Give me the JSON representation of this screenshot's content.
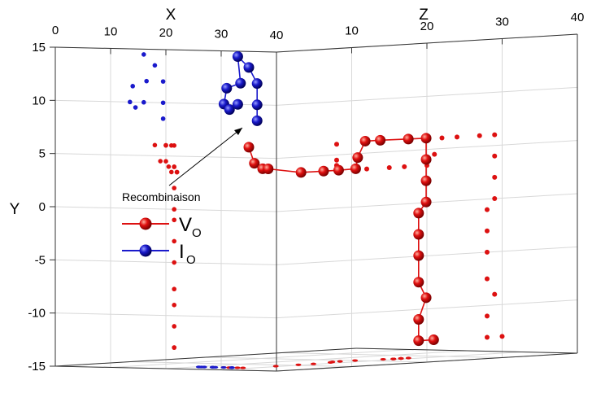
{
  "chart_data": {
    "type": "scatter",
    "projection": "3d",
    "axes": {
      "x": {
        "label": "X",
        "range": [
          0,
          40
        ],
        "ticks": [
          0,
          10,
          20,
          30,
          40
        ]
      },
      "z": {
        "label": "Z",
        "range": [
          0,
          40
        ],
        "ticks": [
          10,
          20,
          30,
          40
        ]
      },
      "y": {
        "label": "Y",
        "range": [
          -15,
          15
        ],
        "ticks": [
          15,
          10,
          5,
          0,
          -5,
          -10,
          -15
        ]
      }
    },
    "grid": true,
    "annotation": {
      "text": "Recombinaison"
    },
    "legend": {
      "placement": "middle-left",
      "entries": [
        {
          "name": "V",
          "subscript": "O",
          "color": "#dd1111"
        },
        {
          "name": "I",
          "subscript": "O",
          "color": "#1a1acc"
        }
      ]
    },
    "series": [
      {
        "name": "VO",
        "color": "#dd1111",
        "points": [
          [
            35,
            6,
            0
          ],
          [
            36,
            4.5,
            0
          ],
          [
            37.5,
            4,
            0
          ],
          [
            38.5,
            4,
            0
          ],
          [
            39,
            3.5,
            4
          ],
          [
            39,
            3.5,
            7
          ],
          [
            39,
            3.5,
            9
          ],
          [
            38,
            3.5,
            12
          ],
          [
            37,
            4.5,
            13
          ],
          [
            37,
            6,
            14
          ],
          [
            37,
            6,
            16
          ],
          [
            38,
            6,
            19
          ],
          [
            38.5,
            6,
            21
          ],
          [
            38.5,
            4,
            21
          ],
          [
            38.5,
            2,
            21
          ],
          [
            38.5,
            0,
            21
          ],
          [
            38.5,
            -1,
            20
          ],
          [
            38.5,
            -3,
            20
          ],
          [
            38.5,
            -5,
            20
          ],
          [
            38.5,
            -7.5,
            20
          ],
          [
            38.5,
            -9,
            21
          ],
          [
            38.5,
            -11,
            20
          ],
          [
            38.5,
            -13,
            20
          ],
          [
            38.5,
            -13,
            22
          ]
        ]
      },
      {
        "name": "IO",
        "color": "#1a1acc",
        "points": [
          [
            36.5,
            8.5,
            0
          ],
          [
            36.5,
            10,
            0
          ],
          [
            36.5,
            12,
            0
          ],
          [
            35,
            13.5,
            0
          ],
          [
            33,
            14.5,
            0
          ],
          [
            33.5,
            12,
            0
          ],
          [
            31,
            11.5,
            0
          ],
          [
            30.5,
            10,
            0
          ],
          [
            31.5,
            9.5,
            0
          ],
          [
            33,
            10,
            0
          ]
        ]
      }
    ]
  }
}
